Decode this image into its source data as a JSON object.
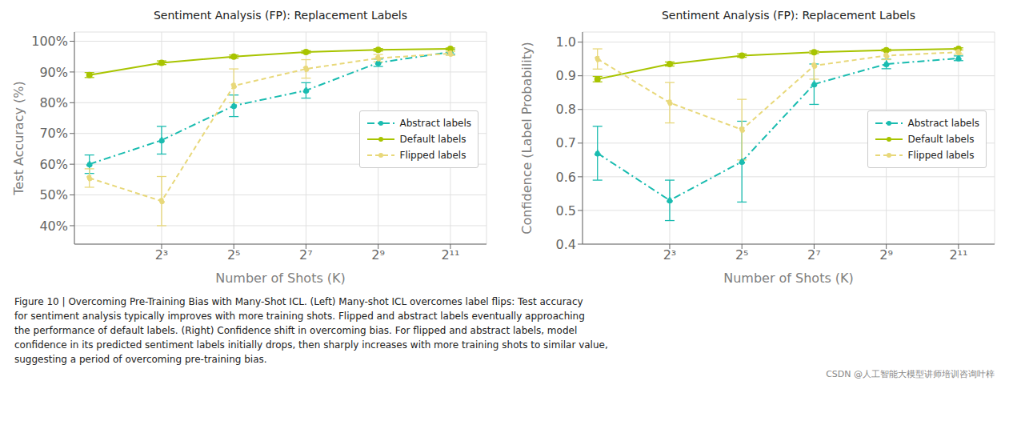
{
  "chart_data": [
    {
      "type": "line",
      "title": "Sentiment Analysis (FP): Replacement Labels",
      "xlabel": "Number of Shots (K)",
      "ylabel": "Test Accuracy (%)",
      "x": [
        2,
        8,
        32,
        128,
        512,
        2048
      ],
      "series": [
        {
          "name": "Abstract labels",
          "color": "#1abcb0",
          "line_style": "dashdot",
          "marker": "circle",
          "values": [
            0.6,
            0.678,
            0.79,
            0.84,
            0.93,
            0.965
          ],
          "errors": [
            0.03,
            0.045,
            0.035,
            0.025,
            0.012,
            0.007
          ]
        },
        {
          "name": "Default labels",
          "color": "#a8c400",
          "line_style": "solid",
          "marker": "circle",
          "values": [
            0.89,
            0.93,
            0.95,
            0.965,
            0.972,
            0.975
          ],
          "errors": [
            0.008,
            0.006,
            0.005,
            0.004,
            0.004,
            0.003
          ]
        },
        {
          "name": "Flipped labels",
          "color": "#e8d87a",
          "line_style": "dashed",
          "marker": "circle",
          "values": [
            0.555,
            0.48,
            0.855,
            0.91,
            0.945,
            0.96
          ],
          "errors": [
            0.03,
            0.08,
            0.055,
            0.03,
            0.012,
            0.006
          ]
        }
      ],
      "log": "x",
      "xlim": [
        1.5,
        4096
      ],
      "xticks": [
        {
          "value": 8,
          "label": "2³"
        },
        {
          "value": 32,
          "label": "2⁵"
        },
        {
          "value": 128,
          "label": "2⁷"
        },
        {
          "value": 512,
          "label": "2⁹"
        },
        {
          "value": 2048,
          "label": "2¹¹"
        }
      ],
      "ylim": [
        0.34,
        1.03
      ],
      "yticks": [
        {
          "value": 0.4,
          "label": "40%"
        },
        {
          "value": 0.5,
          "label": "50%"
        },
        {
          "value": 0.6,
          "label": "60%"
        },
        {
          "value": 0.7,
          "label": "70%"
        },
        {
          "value": 0.8,
          "label": "80%"
        },
        {
          "value": 0.9,
          "label": "90%"
        },
        {
          "value": 1.0,
          "label": "100%"
        }
      ],
      "grid": true,
      "legend": "right",
      "annotations": [
        "Figure 10 | Overcoming Pre-Training Bias with Many-Shot ICL. (Left) Many-shot ICL overcomes label flips: Test accuracy\nfor sentiment analysis typically improves with more training shots. Flipped and abstract labels eventually approaching\nthe performance of default labels. (Right) Confidence shift in overcoming bias. For flipped and abstract labels, model\nconfidence in its predicted sentiment labels initially drops, then sharply increases with more training shots to similar value,\nsuggesting a period of overcoming pre-training bias.",
        "CSDN @人工智能大模型讲师培训咨询叶梓"
      ]
    },
    {
      "type": "line",
      "title": "Sentiment Analysis (FP): Replacement Labels",
      "xlabel": "Number of Shots (K)",
      "ylabel": "Confidence (Label Probability)",
      "x": [
        2,
        8,
        32,
        128,
        512,
        2048
      ],
      "series": [
        {
          "name": "Abstract labels",
          "color": "#1abcb0",
          "line_style": "dashdot",
          "marker": "circle",
          "values": [
            0.67,
            0.53,
            0.645,
            0.875,
            0.935,
            0.952
          ],
          "errors": [
            0.08,
            0.06,
            0.12,
            0.06,
            0.014,
            0.007
          ]
        },
        {
          "name": "Default labels",
          "color": "#a8c400",
          "line_style": "solid",
          "marker": "circle",
          "values": [
            0.89,
            0.935,
            0.96,
            0.97,
            0.976,
            0.98
          ],
          "errors": [
            0.008,
            0.006,
            0.005,
            0.004,
            0.003,
            0.003
          ]
        },
        {
          "name": "Flipped labels",
          "color": "#e8d87a",
          "line_style": "dashed",
          "marker": "circle",
          "values": [
            0.95,
            0.82,
            0.74,
            0.93,
            0.96,
            0.97
          ],
          "errors": [
            0.03,
            0.06,
            0.09,
            0.04,
            0.012,
            0.006
          ]
        }
      ],
      "log": "x",
      "xlim": [
        1.5,
        4096
      ],
      "xticks": [
        {
          "value": 8,
          "label": "2³"
        },
        {
          "value": 32,
          "label": "2⁵"
        },
        {
          "value": 128,
          "label": "2⁷"
        },
        {
          "value": 512,
          "label": "2⁹"
        },
        {
          "value": 2048,
          "label": "2¹¹"
        }
      ],
      "ylim": [
        0.4,
        1.03
      ],
      "yticks": [
        0.4,
        0.5,
        0.6,
        0.7,
        0.8,
        0.9,
        {
          "value": 1.0,
          "label": "1.0"
        }
      ],
      "grid": true,
      "legend": "right"
    }
  ]
}
